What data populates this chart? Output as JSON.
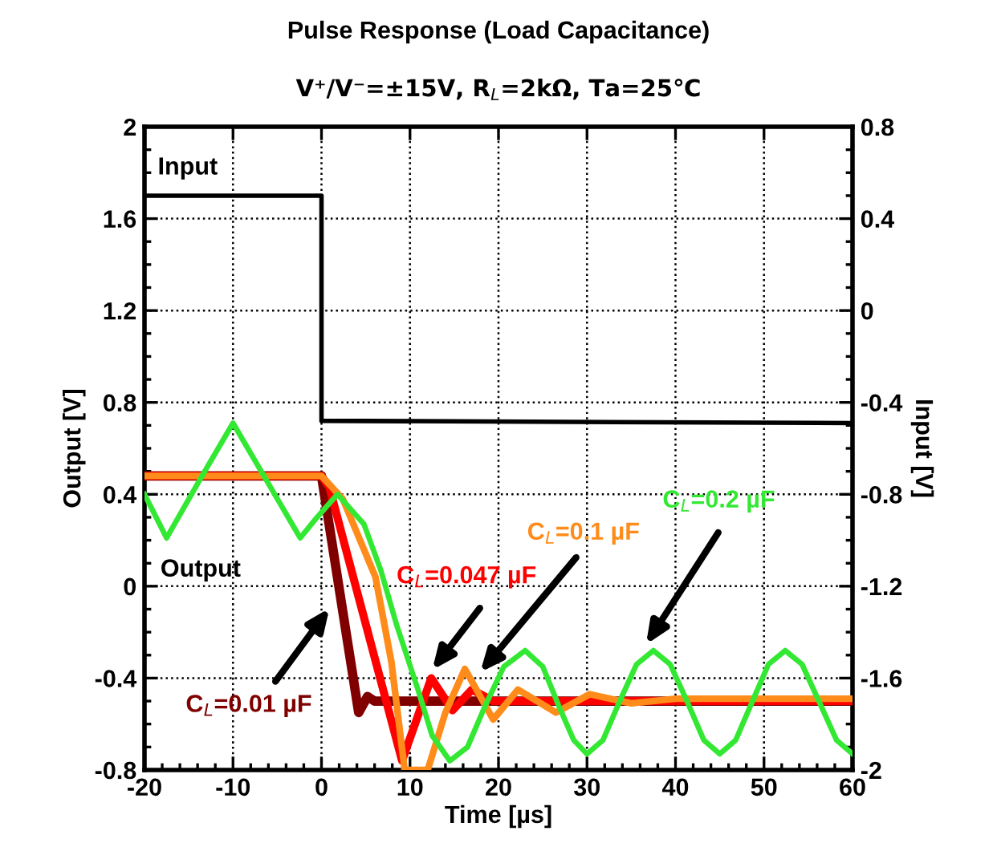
{
  "chart_data": {
    "type": "line",
    "title": "Pulse Response (Load Capacitance)",
    "subtitle": "V⁺/V⁻=±15V, R$_{L}$=2kΩ, Ta=25℃",
    "xlabel": "Time [µs]",
    "ylabel": "Output [V]",
    "y2label": "Input [V]",
    "xlim": [
      -20,
      60
    ],
    "xticks": [
      -20,
      -10,
      0,
      10,
      20,
      30,
      40,
      50,
      60
    ],
    "ylim": [
      -0.8,
      2
    ],
    "yticks": [
      -0.8,
      -0.4,
      0,
      0.4,
      0.8,
      1.2,
      1.6,
      2
    ],
    "y2lim": [
      -2,
      0.8
    ],
    "y2ticks": [
      -2,
      -1.6,
      -1.2,
      -0.8,
      -0.4,
      0,
      0.4,
      0.8
    ],
    "grid": true,
    "line_style": "solid",
    "marker": "none",
    "annotations": [
      "Output"
    ],
    "series": [
      {
        "name": "Input",
        "color": "#000000",
        "axis": "y2",
        "x": [
          -20,
          0,
          0,
          60
        ],
        "values": [
          0.5,
          0.5,
          -0.48,
          -0.49
        ]
      },
      {
        "name": "C$_{L}$=0.2 µF",
        "color": "#33e833",
        "x": [
          -20,
          -17.5,
          -13.8,
          -10,
          -6.2,
          -2.4,
          -0.5,
          1.8,
          4.8,
          6.7,
          8.5,
          10.9,
          12.5,
          14.5,
          16.5,
          18.5,
          20.6,
          23,
          25,
          26.8,
          28.5,
          30,
          31.8,
          33.7,
          35.6,
          37.5,
          39.4,
          41.3,
          43.2,
          45,
          46.8,
          48.7,
          50.5,
          52.4,
          54.3,
          56.2,
          58.2,
          60
        ],
        "values": [
          0.4,
          0.21,
          0.46,
          0.71,
          0.46,
          0.21,
          0.3,
          0.4,
          0.27,
          0.07,
          -0.17,
          -0.45,
          -0.65,
          -0.76,
          -0.7,
          -0.52,
          -0.35,
          -0.28,
          -0.35,
          -0.52,
          -0.67,
          -0.73,
          -0.67,
          -0.5,
          -0.34,
          -0.28,
          -0.34,
          -0.5,
          -0.67,
          -0.73,
          -0.67,
          -0.5,
          -0.34,
          -0.28,
          -0.34,
          -0.5,
          -0.67,
          -0.73
        ]
      },
      {
        "name": "C$_{L}$=0.1 µF",
        "color": "#ff8c1a",
        "x": [
          -20,
          0,
          2.4,
          6.1,
          7.9,
          9.4,
          12.0,
          14.0,
          16.2,
          19.4,
          22.2,
          26.5,
          30.3,
          35,
          40,
          60
        ],
        "values": [
          0.48,
          0.48,
          0.38,
          0.04,
          -0.33,
          -0.8,
          -0.8,
          -0.55,
          -0.36,
          -0.58,
          -0.45,
          -0.55,
          -0.47,
          -0.51,
          -0.49,
          -0.49
        ]
      },
      {
        "name": "C$_{L}$=0.047 µF",
        "color": "#ff0000",
        "x": [
          -20,
          0,
          0.9,
          9.1,
          12.4,
          14.8,
          17,
          19.4,
          60
        ],
        "values": [
          0.48,
          0.48,
          0.43,
          -0.76,
          -0.4,
          -0.54,
          -0.45,
          -0.5,
          -0.5
        ]
      },
      {
        "name": "C$_{L}$=0.01 µF",
        "color": "#800000",
        "x": [
          -20,
          0,
          4.2,
          5.2,
          6.0,
          60
        ],
        "values": [
          0.48,
          0.48,
          -0.55,
          -0.48,
          -0.5,
          -0.5
        ]
      }
    ]
  }
}
